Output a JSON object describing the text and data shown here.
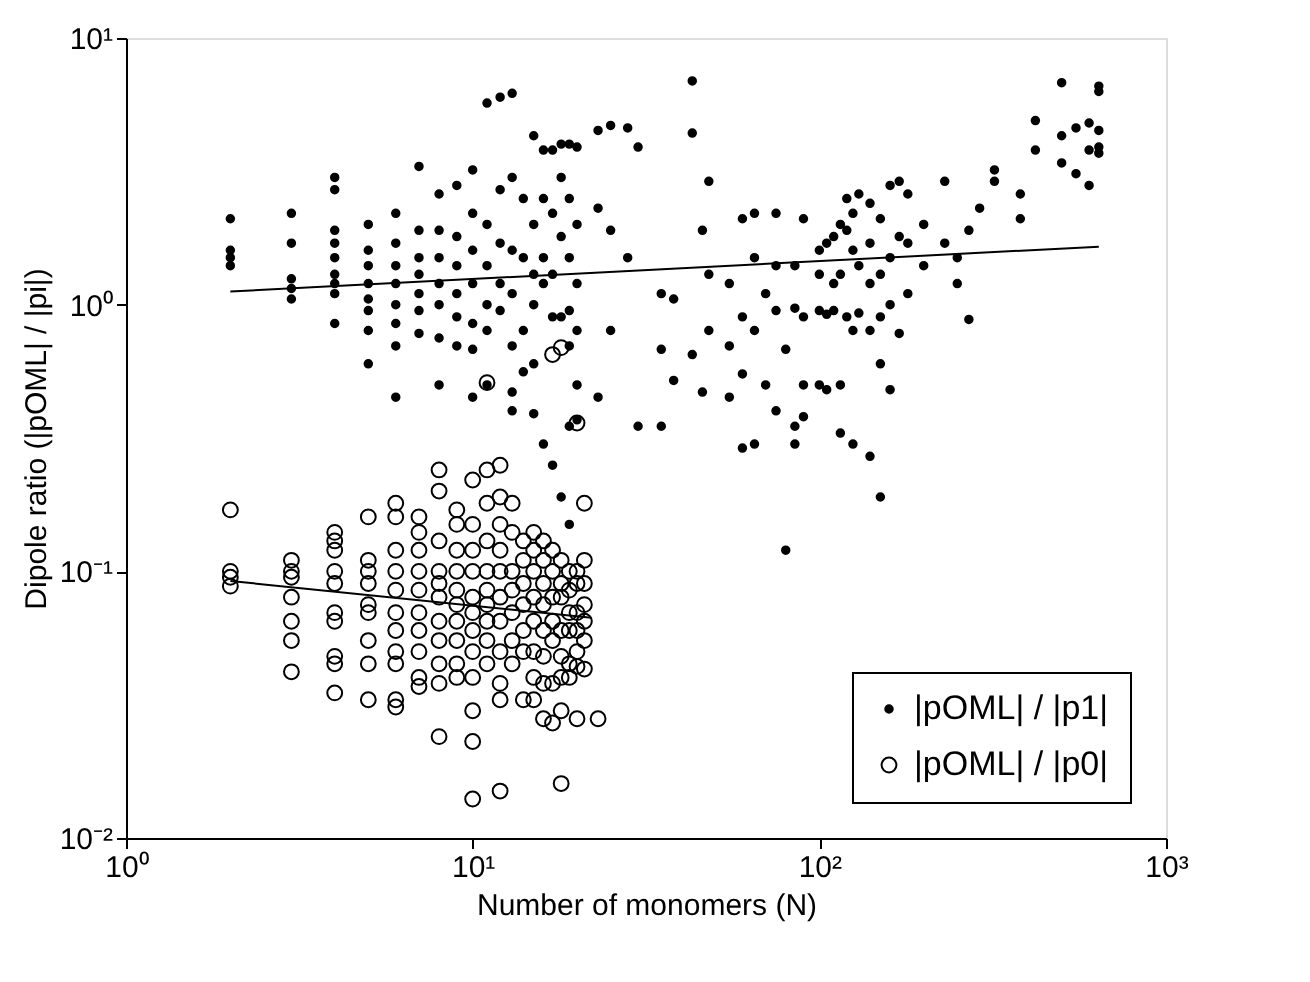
{
  "chart_data": {
    "type": "scatter",
    "xlabel": "Number of monomers (N)",
    "ylabel": "Dipole ratio (|pOML| / |pi|)",
    "log": "xy",
    "xlim": [
      1,
      1000
    ],
    "ylim": [
      0.01,
      10
    ],
    "xticks": [
      {
        "value": 1,
        "label": "10⁰"
      },
      {
        "value": 10,
        "label": "10¹"
      },
      {
        "value": 100,
        "label": "10²"
      },
      {
        "value": 1000,
        "label": "10³"
      }
    ],
    "yticks": [
      {
        "value": 0.01,
        "label": "10⁻²"
      },
      {
        "value": 0.1,
        "label": "10⁻¹"
      },
      {
        "value": 1,
        "label": "10⁰"
      },
      {
        "value": 10,
        "label": "10¹"
      }
    ],
    "grid": false,
    "legend": "bottom right",
    "series": [
      {
        "name": "|pOML| / |p1|",
        "marker": "circle",
        "color": "#000000",
        "x": [
          2,
          2,
          2,
          2,
          3,
          3,
          3,
          3,
          3,
          4,
          4,
          4,
          4,
          4,
          4,
          4,
          4,
          4,
          5,
          5,
          5,
          5,
          5,
          5,
          5,
          5,
          6,
          6,
          6,
          6,
          6,
          6,
          6,
          6,
          7,
          7,
          7,
          7,
          7,
          7,
          7,
          8,
          8,
          8,
          8,
          8,
          8,
          8,
          9,
          9,
          9,
          9,
          9,
          9,
          10,
          10,
          10,
          10,
          10,
          10,
          10,
          11,
          11,
          11,
          11,
          11,
          11,
          12,
          12,
          12,
          12,
          12,
          13,
          13,
          13,
          13,
          13,
          13,
          13,
          14,
          14,
          14,
          14,
          15,
          15,
          15,
          15,
          15,
          15,
          16,
          16,
          16,
          16,
          16,
          17,
          17,
          17,
          17,
          17,
          18,
          18,
          18,
          18,
          18,
          19,
          19,
          19,
          19,
          19,
          19,
          19,
          20,
          20,
          20,
          20,
          20,
          20,
          23,
          23,
          23,
          25,
          25,
          25,
          28,
          28,
          30,
          30,
          35,
          35,
          35,
          38,
          38,
          43,
          43,
          43,
          46,
          46,
          48,
          48,
          48,
          55,
          55,
          55,
          60,
          60,
          60,
          60,
          65,
          65,
          65,
          65,
          70,
          70,
          75,
          75,
          75,
          75,
          80,
          80,
          85,
          85,
          85,
          85,
          90,
          90,
          90,
          90,
          100,
          100,
          100,
          100,
          105,
          105,
          105,
          110,
          110,
          110,
          115,
          115,
          115,
          115,
          120,
          120,
          120,
          125,
          125,
          125,
          125,
          130,
          130,
          130,
          140,
          140,
          140,
          140,
          140,
          150,
          150,
          150,
          150,
          150,
          160,
          160,
          160,
          160,
          170,
          170,
          170,
          180,
          180,
          180,
          200,
          200,
          230,
          230,
          250,
          250,
          270,
          270,
          290,
          320,
          320,
          380,
          380,
          420,
          420,
          500,
          500,
          500,
          550,
          550,
          600,
          600,
          600,
          640,
          640,
          640,
          640,
          640
        ],
        "values": [
          2.1,
          1.6,
          1.5,
          1.4,
          2.2,
          1.7,
          1.25,
          1.15,
          1.05,
          3.0,
          2.7,
          1.9,
          1.7,
          1.5,
          1.3,
          1.2,
          1.1,
          0.85,
          2.0,
          1.6,
          1.4,
          1.2,
          1.05,
          0.95,
          0.8,
          0.6,
          2.2,
          1.7,
          1.4,
          1.2,
          1.0,
          0.85,
          0.7,
          0.45,
          3.3,
          1.9,
          1.5,
          1.3,
          1.1,
          0.95,
          0.78,
          2.6,
          1.9,
          1.5,
          1.2,
          1.0,
          0.75,
          0.5,
          2.8,
          1.8,
          1.4,
          1.1,
          0.9,
          0.7,
          3.2,
          2.2,
          1.6,
          1.2,
          0.85,
          0.68,
          0.45,
          5.7,
          2.0,
          1.4,
          1.0,
          0.8,
          0.5,
          6.0,
          2.7,
          1.7,
          1.2,
          0.95,
          6.2,
          3.0,
          1.6,
          1.1,
          0.7,
          0.47,
          0.4,
          2.5,
          1.5,
          0.8,
          0.56,
          4.3,
          2.0,
          1.3,
          1.0,
          0.6,
          0.39,
          3.8,
          2.5,
          1.5,
          1.2,
          0.3,
          3.8,
          2.2,
          1.3,
          0.9,
          0.25,
          4.0,
          3.0,
          1.8,
          0.9,
          0.19,
          4.0,
          2.5,
          1.5,
          0.95,
          0.7,
          0.35,
          0.15,
          3.9,
          2.0,
          1.2,
          0.8,
          0.5,
          0.37,
          4.5,
          2.3,
          0.45,
          4.7,
          1.9,
          0.8,
          4.6,
          1.5,
          3.9,
          0.35,
          1.1,
          0.68,
          0.35,
          1.05,
          0.52,
          6.9,
          4.4,
          0.65,
          1.9,
          0.47,
          2.9,
          1.3,
          0.8,
          1.2,
          0.7,
          0.45,
          2.1,
          0.9,
          0.55,
          0.29,
          2.2,
          1.5,
          0.8,
          0.3,
          1.1,
          0.5,
          2.2,
          1.4,
          0.95,
          0.4,
          0.68,
          0.12,
          1.4,
          0.97,
          0.35,
          0.3,
          2.1,
          0.9,
          0.5,
          0.38,
          1.6,
          1.3,
          0.95,
          0.5,
          1.7,
          0.92,
          0.48,
          1.8,
          1.2,
          0.95,
          2.0,
          1.3,
          0.5,
          0.33,
          2.5,
          1.9,
          0.9,
          2.2,
          1.6,
          0.8,
          0.3,
          2.6,
          1.4,
          0.93,
          2.4,
          1.7,
          1.2,
          0.8,
          0.27,
          2.1,
          1.3,
          0.9,
          0.6,
          0.19,
          2.8,
          1.5,
          1.0,
          0.48,
          2.9,
          1.8,
          0.78,
          2.6,
          1.7,
          1.1,
          2.0,
          1.4,
          2.9,
          1.7,
          1.5,
          1.2,
          1.9,
          0.88,
          2.3,
          2.9,
          3.2,
          2.6,
          2.1,
          3.8,
          4.9,
          6.8,
          3.4,
          4.3,
          4.6,
          3.1,
          4.8,
          3.8,
          2.8,
          6.6,
          6.3,
          4.5,
          3.9,
          3.7
        ]
      },
      {
        "name": "|pOML| / |p0|",
        "marker": "circle",
        "color": "#000000",
        "x": [
          2,
          2,
          2,
          2,
          3,
          3,
          3,
          3,
          3,
          3,
          3,
          4,
          4,
          4,
          4,
          4,
          4,
          4,
          4,
          4,
          4,
          5,
          5,
          5,
          5,
          5,
          5,
          5,
          5,
          5,
          6,
          6,
          6,
          6,
          6,
          6,
          6,
          6,
          6,
          6,
          6,
          7,
          7,
          7,
          7,
          7,
          7,
          7,
          7,
          7,
          7,
          8,
          8,
          8,
          8,
          8,
          8,
          8,
          8,
          8,
          8,
          8,
          9,
          9,
          9,
          9,
          9,
          9,
          9,
          9,
          9,
          9,
          10,
          10,
          10,
          10,
          10,
          10,
          10,
          10,
          10,
          10,
          10,
          10,
          11,
          11,
          11,
          11,
          11,
          11,
          11,
          11,
          11,
          11,
          12,
          12,
          12,
          12,
          12,
          12,
          12,
          12,
          12,
          12,
          12,
          13,
          13,
          13,
          13,
          13,
          13,
          13,
          14,
          14,
          14,
          14,
          14,
          14,
          14,
          15,
          15,
          15,
          15,
          15,
          15,
          15,
          15,
          16,
          16,
          16,
          16,
          16,
          16,
          16,
          16,
          17,
          17,
          17,
          17,
          17,
          17,
          17,
          17,
          18,
          18,
          18,
          18,
          18,
          18,
          18,
          18,
          18,
          19,
          19,
          19,
          19,
          19,
          19,
          20,
          20,
          20,
          20,
          20,
          20,
          20,
          20,
          21,
          21,
          21,
          21,
          21,
          21,
          21,
          23
        ],
        "values": [
          0.17,
          0.1,
          0.095,
          0.088,
          0.11,
          0.1,
          0.095,
          0.08,
          0.065,
          0.055,
          0.042,
          0.14,
          0.13,
          0.12,
          0.1,
          0.09,
          0.07,
          0.065,
          0.048,
          0.045,
          0.035,
          0.16,
          0.11,
          0.1,
          0.09,
          0.075,
          0.07,
          0.055,
          0.045,
          0.033,
          0.18,
          0.16,
          0.12,
          0.1,
          0.085,
          0.07,
          0.06,
          0.05,
          0.045,
          0.033,
          0.031,
          0.16,
          0.14,
          0.12,
          0.1,
          0.085,
          0.07,
          0.06,
          0.05,
          0.04,
          0.037,
          0.24,
          0.2,
          0.13,
          0.1,
          0.09,
          0.08,
          0.065,
          0.055,
          0.045,
          0.038,
          0.024,
          0.17,
          0.15,
          0.12,
          0.1,
          0.085,
          0.075,
          0.065,
          0.055,
          0.045,
          0.04,
          0.22,
          0.15,
          0.12,
          0.1,
          0.08,
          0.07,
          0.06,
          0.05,
          0.04,
          0.03,
          0.023,
          0.014,
          0.51,
          0.24,
          0.18,
          0.13,
          0.1,
          0.085,
          0.075,
          0.065,
          0.055,
          0.045,
          0.25,
          0.19,
          0.15,
          0.12,
          0.1,
          0.08,
          0.065,
          0.05,
          0.038,
          0.033,
          0.015,
          0.18,
          0.14,
          0.1,
          0.085,
          0.07,
          0.055,
          0.045,
          0.13,
          0.11,
          0.09,
          0.075,
          0.06,
          0.05,
          0.033,
          0.14,
          0.12,
          0.1,
          0.08,
          0.065,
          0.05,
          0.04,
          0.033,
          0.13,
          0.11,
          0.09,
          0.075,
          0.06,
          0.048,
          0.038,
          0.028,
          0.65,
          0.12,
          0.1,
          0.08,
          0.065,
          0.055,
          0.038,
          0.027,
          0.69,
          0.11,
          0.09,
          0.08,
          0.06,
          0.048,
          0.04,
          0.03,
          0.016,
          0.1,
          0.085,
          0.07,
          0.06,
          0.045,
          0.04,
          0.36,
          0.1,
          0.09,
          0.07,
          0.06,
          0.05,
          0.044,
          0.028,
          0.18,
          0.11,
          0.09,
          0.075,
          0.065,
          0.055,
          0.043,
          0.028
        ]
      },
      {
        "type": "line",
        "color": "#000000",
        "line_style": "solid",
        "x": [
          2,
          640
        ],
        "values": [
          1.12,
          1.65
        ]
      },
      {
        "type": "line",
        "color": "#000000",
        "line_style": "solid",
        "x": [
          2,
          22
        ],
        "values": [
          0.092,
          0.067
        ]
      }
    ]
  }
}
